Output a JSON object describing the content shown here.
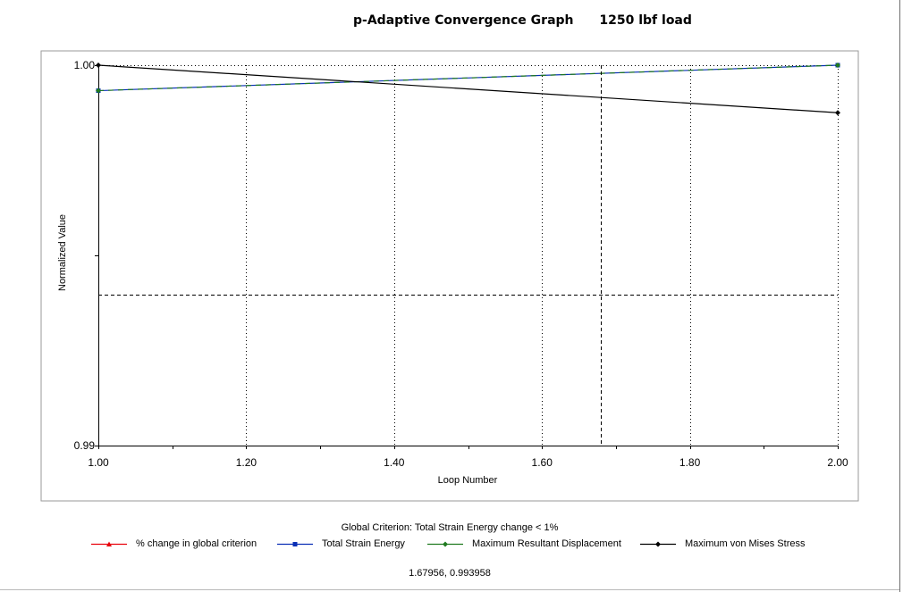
{
  "title": "p-Adaptive Convergence Graph",
  "subtitle": "1250 lbf load",
  "chart_data": {
    "type": "line",
    "xlabel": "Loop Number",
    "ylabel": "Normalized Value",
    "xlim": [
      1.0,
      2.0
    ],
    "ylim": [
      0.99,
      1.0
    ],
    "x_ticks": [
      "1.00",
      "1.20",
      "1.40",
      "1.60",
      "1.80",
      "2.00"
    ],
    "y_ticks": [
      "0.99",
      "1.00"
    ],
    "grid": "dotted vertical and horizontal at labeled ticks",
    "crosshair": {
      "x": 1.67956,
      "y": 0.993958
    },
    "series": [
      {
        "name": "% change in global criterion",
        "color": "#e8000b",
        "marker": "triangle",
        "x": [],
        "y": []
      },
      {
        "name": "Total Strain Energy",
        "color": "#0a2fb5",
        "marker": "square",
        "x": [
          1.0,
          2.0
        ],
        "y": [
          0.99933,
          1.0
        ]
      },
      {
        "name": "Maximum Resultant Displacement",
        "color": "#1f7a1f",
        "marker": "diamond",
        "x": [
          1.0,
          2.0
        ],
        "y": [
          0.99933,
          1.0
        ]
      },
      {
        "name": "Maximum von Mises Stress",
        "color": "#000000",
        "marker": "diamond",
        "x": [
          1.0,
          2.0
        ],
        "y": [
          1.0,
          0.99875
        ]
      }
    ],
    "legend_caption": "Global Criterion: Total Strain Energy change < 1%",
    "legend_position": "bottom"
  },
  "status": {
    "coordinate_readout": "1.67956, 0.993958"
  }
}
